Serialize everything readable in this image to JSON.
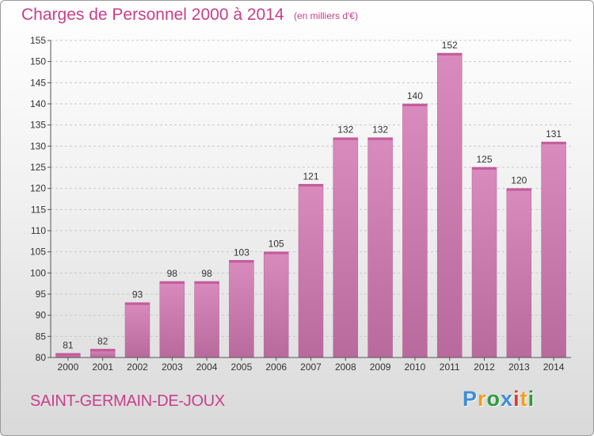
{
  "chart_data": {
    "type": "bar",
    "title": "Charges de Personnel 2000 à 2014",
    "subtitle": "(en milliers d'€)",
    "categories": [
      "2000",
      "2001",
      "2002",
      "2003",
      "2004",
      "2005",
      "2006",
      "2007",
      "2008",
      "2009",
      "2010",
      "2011",
      "2012",
      "2013",
      "2014"
    ],
    "values": [
      81,
      82,
      93,
      98,
      98,
      103,
      105,
      121,
      132,
      132,
      140,
      152,
      125,
      120,
      131
    ],
    "ylim": [
      80,
      155
    ],
    "yticks": [
      80,
      85,
      90,
      95,
      100,
      105,
      110,
      115,
      120,
      125,
      130,
      135,
      140,
      145,
      150,
      155
    ],
    "grid": true,
    "bar_color": "#d98bbd",
    "bar_color_dark": "#b96a9d"
  },
  "commune": "SAINT-GERMAIN-DE-JOUX",
  "logo": {
    "letters": [
      "P",
      "r",
      "o",
      "x",
      "i",
      "t",
      "i"
    ],
    "colors": [
      "#3a8fd6",
      "#f29d1f",
      "#2e9b3e",
      "#3a8fd6",
      "#e8352e",
      "#f29d1f",
      "#2e9b3e"
    ]
  }
}
